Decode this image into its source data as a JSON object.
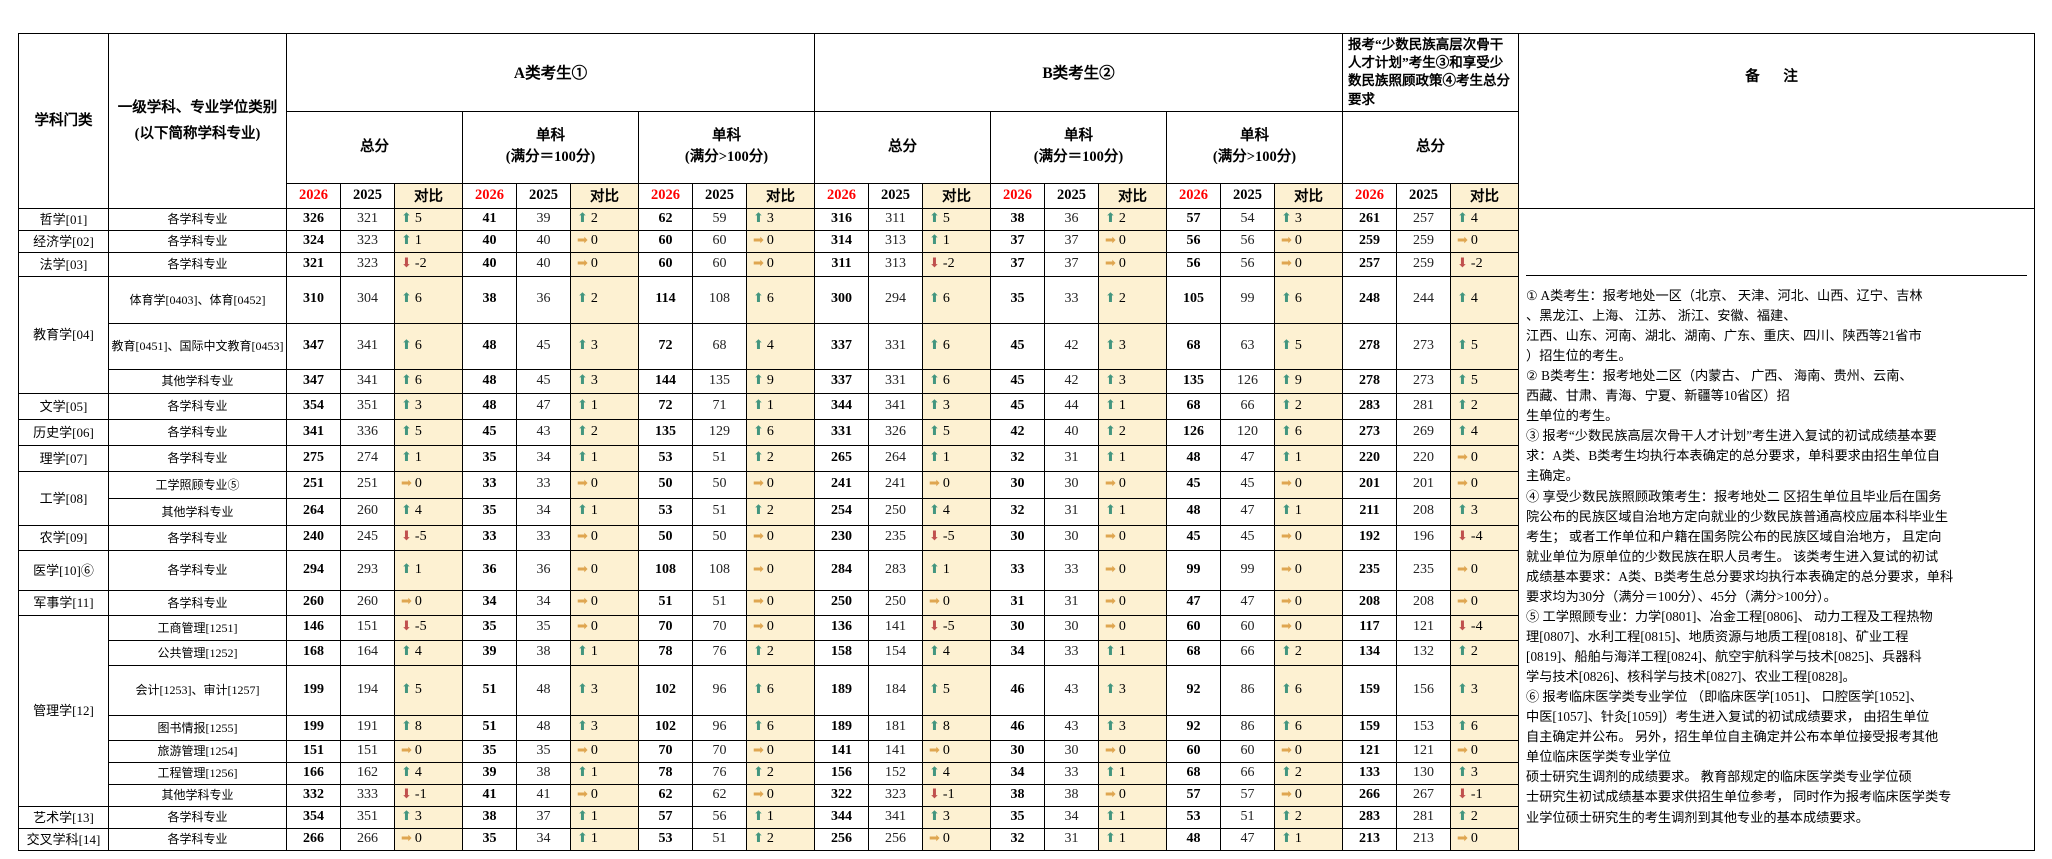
{
  "colors": {
    "year_new_red": "#ff0000",
    "diff_column_cream": "#fdf1d2",
    "trend_up": "#43967f",
    "trend_down": "#c0504d",
    "trend_flat": "#dfa650",
    "border": "#000000"
  },
  "icons": {
    "up": "⬆",
    "down": "⬇",
    "flat": "➡"
  },
  "table": {
    "col_category": "学科门类",
    "col_major": "一级学科、专业学位类别\n(以下简称学科专业)",
    "group_a": "A类考生①",
    "group_b": "B类考生②",
    "group_minority": "报考“少数民族高层次骨干人才计划”考生③和享受少数民族照顾政策④考生总分要求",
    "col_remark": "备  注",
    "header_row2": [
      "总分",
      "单科\n(满分＝100分)",
      "单科\n(满分>100分)",
      "总分",
      "单科\n(满分＝100分)",
      "单科\n(满分>100分)",
      "总分"
    ],
    "year_new": "2026",
    "year_old": "2025",
    "diff_label": "对比"
  },
  "rows": [
    {
      "cat": "哲学[01]",
      "span": 1,
      "major": "各学科专业",
      "c": [
        [
          326,
          321,
          5
        ],
        [
          41,
          39,
          2
        ],
        [
          62,
          59,
          3
        ],
        [
          316,
          311,
          5
        ],
        [
          38,
          36,
          2
        ],
        [
          57,
          54,
          3
        ],
        [
          261,
          257,
          4
        ]
      ]
    },
    {
      "cat": "经济学[02]",
      "span": 1,
      "major": "各学科专业",
      "c": [
        [
          324,
          323,
          1
        ],
        [
          40,
          40,
          0
        ],
        [
          60,
          60,
          0
        ],
        [
          314,
          313,
          1
        ],
        [
          37,
          37,
          0
        ],
        [
          56,
          56,
          0
        ],
        [
          259,
          259,
          0
        ]
      ]
    },
    {
      "cat": "法学[03]",
      "span": 1,
      "major": "各学科专业",
      "c": [
        [
          321,
          323,
          -2
        ],
        [
          40,
          40,
          0
        ],
        [
          60,
          60,
          0
        ],
        [
          311,
          313,
          -2
        ],
        [
          37,
          37,
          0
        ],
        [
          56,
          56,
          0
        ],
        [
          257,
          259,
          -2
        ]
      ]
    },
    {
      "cat": "教育学[04]",
      "span": 3,
      "major": "体育学[0403]、体育[0452]",
      "c": [
        [
          310,
          304,
          6
        ],
        [
          38,
          36,
          2
        ],
        [
          114,
          108,
          6
        ],
        [
          300,
          294,
          6
        ],
        [
          35,
          33,
          2
        ],
        [
          105,
          99,
          6
        ],
        [
          248,
          244,
          4
        ]
      ]
    },
    {
      "major": "教育[0451]、国际中文教育[0453]",
      "c": [
        [
          347,
          341,
          6
        ],
        [
          48,
          45,
          3
        ],
        [
          72,
          68,
          4
        ],
        [
          337,
          331,
          6
        ],
        [
          45,
          42,
          3
        ],
        [
          68,
          63,
          5
        ],
        [
          278,
          273,
          5
        ]
      ]
    },
    {
      "major": "其他学科专业",
      "c": [
        [
          347,
          341,
          6
        ],
        [
          48,
          45,
          3
        ],
        [
          144,
          135,
          9
        ],
        [
          337,
          331,
          6
        ],
        [
          45,
          42,
          3
        ],
        [
          135,
          126,
          9
        ],
        [
          278,
          273,
          5
        ]
      ]
    },
    {
      "cat": "文学[05]",
      "span": 1,
      "major": "各学科专业",
      "c": [
        [
          354,
          351,
          3
        ],
        [
          48,
          47,
          1
        ],
        [
          72,
          71,
          1
        ],
        [
          344,
          341,
          3
        ],
        [
          45,
          44,
          1
        ],
        [
          68,
          66,
          2
        ],
        [
          283,
          281,
          2
        ]
      ]
    },
    {
      "cat": "历史学[06]",
      "span": 1,
      "major": "各学科专业",
      "c": [
        [
          341,
          336,
          5
        ],
        [
          45,
          43,
          2
        ],
        [
          135,
          129,
          6
        ],
        [
          331,
          326,
          5
        ],
        [
          42,
          40,
          2
        ],
        [
          126,
          120,
          6
        ],
        [
          273,
          269,
          4
        ]
      ]
    },
    {
      "cat": "理学[07]",
      "span": 1,
      "major": "各学科专业",
      "c": [
        [
          275,
          274,
          1
        ],
        [
          35,
          34,
          1
        ],
        [
          53,
          51,
          2
        ],
        [
          265,
          264,
          1
        ],
        [
          32,
          31,
          1
        ],
        [
          48,
          47,
          1
        ],
        [
          220,
          220,
          0
        ]
      ]
    },
    {
      "cat": "工学[08]",
      "span": 2,
      "major": "工学照顾专业⑤",
      "c": [
        [
          251,
          251,
          0
        ],
        [
          33,
          33,
          0
        ],
        [
          50,
          50,
          0
        ],
        [
          241,
          241,
          0
        ],
        [
          30,
          30,
          0
        ],
        [
          45,
          45,
          0
        ],
        [
          201,
          201,
          0
        ]
      ]
    },
    {
      "major": "其他学科专业",
      "c": [
        [
          264,
          260,
          4
        ],
        [
          35,
          34,
          1
        ],
        [
          53,
          51,
          2
        ],
        [
          254,
          250,
          4
        ],
        [
          32,
          31,
          1
        ],
        [
          48,
          47,
          1
        ],
        [
          211,
          208,
          3
        ]
      ]
    },
    {
      "cat": "农学[09]",
      "span": 1,
      "major": "各学科专业",
      "c": [
        [
          240,
          245,
          -5
        ],
        [
          33,
          33,
          0
        ],
        [
          50,
          50,
          0
        ],
        [
          230,
          235,
          -5
        ],
        [
          30,
          30,
          0
        ],
        [
          45,
          45,
          0
        ],
        [
          192,
          196,
          -4
        ]
      ]
    },
    {
      "cat": "医学[10]⑥",
      "span": 1,
      "major": "各学科专业",
      "c": [
        [
          294,
          293,
          1
        ],
        [
          36,
          36,
          0
        ],
        [
          108,
          108,
          0
        ],
        [
          284,
          283,
          1
        ],
        [
          33,
          33,
          0
        ],
        [
          99,
          99,
          0
        ],
        [
          235,
          235,
          0
        ]
      ]
    },
    {
      "cat": "军事学[11]",
      "span": 1,
      "major": "各学科专业",
      "c": [
        [
          260,
          260,
          0
        ],
        [
          34,
          34,
          0
        ],
        [
          51,
          51,
          0
        ],
        [
          250,
          250,
          0
        ],
        [
          31,
          31,
          0
        ],
        [
          47,
          47,
          0
        ],
        [
          208,
          208,
          0
        ]
      ]
    },
    {
      "cat": "管理学[12]",
      "span": 7,
      "major": "工商管理[1251]",
      "c": [
        [
          146,
          151,
          -5
        ],
        [
          35,
          35,
          0
        ],
        [
          70,
          70,
          0
        ],
        [
          136,
          141,
          -5
        ],
        [
          30,
          30,
          0
        ],
        [
          60,
          60,
          0
        ],
        [
          117,
          121,
          -4
        ]
      ]
    },
    {
      "major": "公共管理[1252]",
      "c": [
        [
          168,
          164,
          4
        ],
        [
          39,
          38,
          1
        ],
        [
          78,
          76,
          2
        ],
        [
          158,
          154,
          4
        ],
        [
          34,
          33,
          1
        ],
        [
          68,
          66,
          2
        ],
        [
          134,
          132,
          2
        ]
      ]
    },
    {
      "major": "会计[1253]、审计[1257]",
      "c": [
        [
          199,
          194,
          5
        ],
        [
          51,
          48,
          3
        ],
        [
          102,
          96,
          6
        ],
        [
          189,
          184,
          5
        ],
        [
          46,
          43,
          3
        ],
        [
          92,
          86,
          6
        ],
        [
          159,
          156,
          3
        ]
      ]
    },
    {
      "major": "图书情报[1255]",
      "c": [
        [
          199,
          191,
          8
        ],
        [
          51,
          48,
          3
        ],
        [
          102,
          96,
          6
        ],
        [
          189,
          181,
          8
        ],
        [
          46,
          43,
          3
        ],
        [
          92,
          86,
          6
        ],
        [
          159,
          153,
          6
        ]
      ]
    },
    {
      "major": "旅游管理[1254]",
      "c": [
        [
          151,
          151,
          0
        ],
        [
          35,
          35,
          0
        ],
        [
          70,
          70,
          0
        ],
        [
          141,
          141,
          0
        ],
        [
          30,
          30,
          0
        ],
        [
          60,
          60,
          0
        ],
        [
          121,
          121,
          0
        ]
      ]
    },
    {
      "major": "工程管理[1256]",
      "c": [
        [
          166,
          162,
          4
        ],
        [
          39,
          38,
          1
        ],
        [
          78,
          76,
          2
        ],
        [
          156,
          152,
          4
        ],
        [
          34,
          33,
          1
        ],
        [
          68,
          66,
          2
        ],
        [
          133,
          130,
          3
        ]
      ]
    },
    {
      "major": "其他学科专业",
      "c": [
        [
          332,
          333,
          -1
        ],
        [
          41,
          41,
          0
        ],
        [
          62,
          62,
          0
        ],
        [
          322,
          323,
          -1
        ],
        [
          38,
          38,
          0
        ],
        [
          57,
          57,
          0
        ],
        [
          266,
          267,
          -1
        ]
      ]
    },
    {
      "cat": "艺术学[13]",
      "span": 1,
      "major": "各学科专业",
      "c": [
        [
          354,
          351,
          3
        ],
        [
          38,
          37,
          1
        ],
        [
          57,
          56,
          1
        ],
        [
          344,
          341,
          3
        ],
        [
          35,
          34,
          1
        ],
        [
          53,
          51,
          2
        ],
        [
          283,
          281,
          2
        ]
      ]
    },
    {
      "cat": "交叉学科[14]",
      "span": 1,
      "major": "各学科专业",
      "c": [
        [
          266,
          266,
          0
        ],
        [
          35,
          34,
          1
        ],
        [
          53,
          51,
          2
        ],
        [
          256,
          256,
          0
        ],
        [
          32,
          31,
          1
        ],
        [
          48,
          47,
          1
        ],
        [
          213,
          213,
          0
        ]
      ]
    }
  ],
  "remarks": [
    "① A类考生：报考地处一区（北京、 天津、河北、山西、辽宁、吉林\n、黑龙江、上海、 江苏、 浙江、安徽、福建、\n江西、山东、河南、湖北、湖南、广东、重庆、四川、陕西等21省市\n）招生位的考生。",
    "② B类考生：报考地处二区（内蒙古、 广西、 海南、贵州、云南、\n西藏、甘肃、青海、宁夏、新疆等10省区）招\n生单位的考生。",
    "③ 报考“少数民族高层次骨干人才计划”考生进入复试的初试成绩基本要\n求：A类、B类考生均执行本表确定的总分要求，单科要求由招生单位自\n主确定。",
    "④ 享受少数民族照顾政策考生：报考地处二 区招生单位且毕业后在国务\n院公布的民族区域自治地方定向就业的少数民族普通高校应届本科毕业生\n考生； 或者工作单位和户籍在国务院公布的民族区域自治地方， 且定向\n就业单位为原单位的少数民族在职人员考生。 该类考生进入复试的初试\n成绩基本要求：A类、B类考生总分要求均执行本表确定的总分要求，单科\n要求均为30分（满分＝100分）、45分（满分>100分）。",
    "⑤ 工学照顾专业：力学[0801]、冶金工程[0806]、 动力工程及工程热物\n理[0807]、水利工程[0815]、地质资源与地质工程[0818]、矿业工程\n[0819]、船舶与海洋工程[0824]、航空宇航科学与技术[0825]、兵器科\n学与技术[0826]、核科学与技术[0827]、农业工程[0828]。",
    "⑥ 报考临床医学类专业学位 （即临床医学[1051]、 口腔医学[1052]、\n中医[1057]、针灸[1059]）考生进入复试的初试成绩要求， 由招生单位\n自主确定并公布。 另外，招生单位自主确定并公布本单位接受报考其他\n单位临床医学类专业学位\n硕士研究生调剂的成绩要求。 教育部规定的临床医学类专业学位硕\n士研究生初试成绩基本要求供招生单位参考， 同时作为报考临床医学类专\n业学位硕士研究生的考生调剂到其他专业的基本成绩要求。"
  ]
}
